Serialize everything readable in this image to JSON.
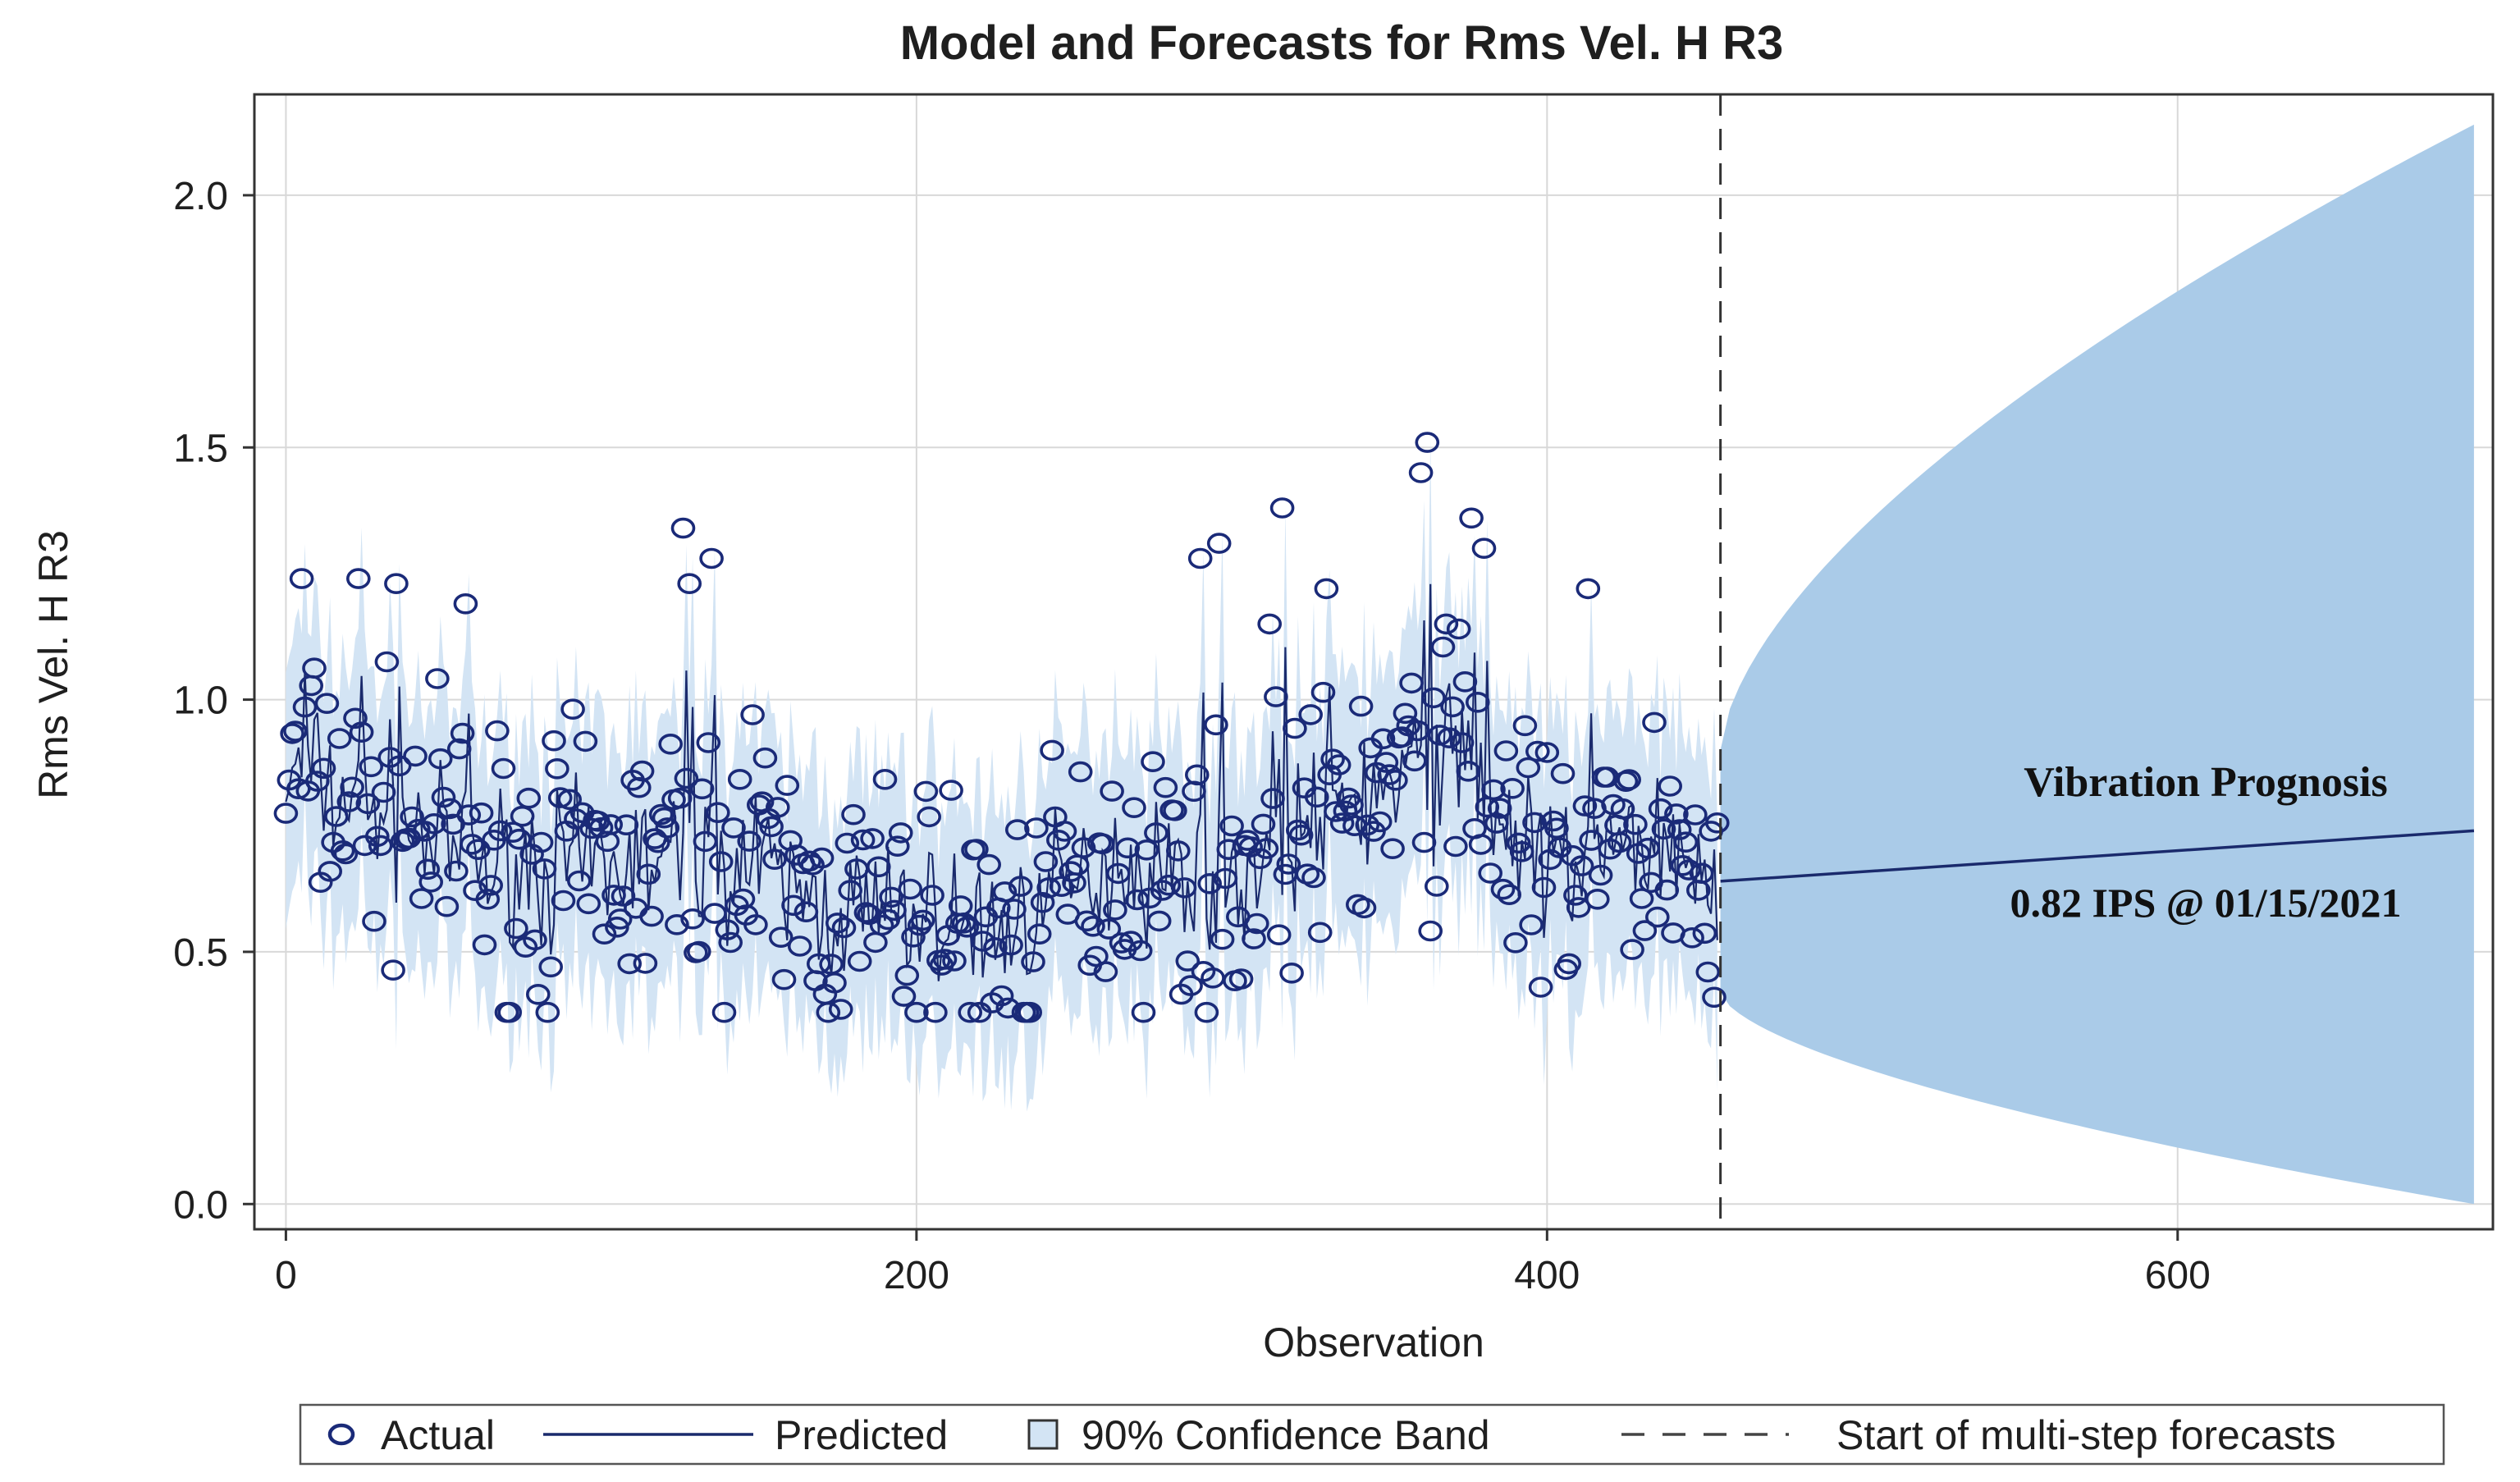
{
  "chart_data": {
    "type": "line",
    "title": "Model and Forecasts for Rms Vel. H R3",
    "xlabel": "Observation",
    "ylabel": "Rms Vel. H R3",
    "xlim": [
      -10,
      700
    ],
    "ylim": [
      -0.05,
      2.2
    ],
    "xticks": [
      0,
      200,
      400,
      600
    ],
    "xtick_labels": [
      "0",
      "200",
      "400",
      "600"
    ],
    "yticks": [
      0.0,
      0.5,
      1.0,
      1.5,
      2.0
    ],
    "ytick_labels": [
      "0.0",
      "0.5",
      "1.0",
      "1.5",
      "2.0"
    ],
    "grid": true,
    "forecast_start": 455,
    "forecast_end": 694,
    "actual_seed": 7,
    "actual_points": 455,
    "actual_profile": [
      [
        0,
        0.85
      ],
      [
        30,
        0.78
      ],
      [
        60,
        0.68
      ],
      [
        100,
        0.66
      ],
      [
        140,
        0.7
      ],
      [
        170,
        0.58
      ],
      [
        200,
        0.57
      ],
      [
        230,
        0.54
      ],
      [
        260,
        0.68
      ],
      [
        300,
        0.64
      ],
      [
        330,
        0.78
      ],
      [
        370,
        0.86
      ],
      [
        400,
        0.66
      ],
      [
        430,
        0.72
      ],
      [
        455,
        0.68
      ]
    ],
    "actual_highlights": [
      [
        5,
        1.24
      ],
      [
        23,
        1.24
      ],
      [
        35,
        1.23
      ],
      [
        57,
        1.19
      ],
      [
        126,
        1.34
      ],
      [
        128,
        1.23
      ],
      [
        290,
        1.28
      ],
      [
        296,
        1.31
      ],
      [
        316,
        1.38
      ],
      [
        330,
        1.22
      ],
      [
        360,
        1.45
      ],
      [
        362,
        1.51
      ],
      [
        376,
        1.36
      ],
      [
        380,
        1.3
      ],
      [
        413,
        1.22
      ],
      [
        312,
        1.15
      ],
      [
        368,
        1.15
      ],
      [
        372,
        1.14
      ],
      [
        220,
        0.38
      ],
      [
        398,
        0.43
      ],
      [
        453,
        0.41
      ],
      [
        451,
        0.46
      ],
      [
        135,
        1.28
      ],
      [
        148,
        0.97
      ]
    ],
    "forecast_line": {
      "start_value": 0.64,
      "end_value": 0.74
    },
    "confidence_band": {
      "forecast_upper_start": 0.9,
      "forecast_upper_end": 2.14,
      "forecast_lower_start": 0.42,
      "forecast_lower_end": 0.0,
      "in_sample_halfwidth": 0.26
    },
    "series": [
      {
        "name": "Actual",
        "style": "open-circle"
      },
      {
        "name": "Predicted",
        "style": "solid-line"
      },
      {
        "name": "90% Confidence Band",
        "style": "filled-band"
      },
      {
        "name": "Start of multi-step forecasts",
        "style": "dashed-vertical"
      }
    ],
    "legend_position": "bottom",
    "annotations": [
      {
        "text": "Vibration Prognosis",
        "x": 600,
        "y": 0.82
      },
      {
        "text": "0.82 IPS @ 01/15/2021",
        "x": 600,
        "y": 0.59
      }
    ],
    "colors": {
      "marker": "#1a2a78",
      "line": "#1a2a6c",
      "band_in_sample": "#d3e4f4",
      "band_forecast": "#aacbe8",
      "grid": "#d8d8d8",
      "frame": "#333333"
    }
  }
}
